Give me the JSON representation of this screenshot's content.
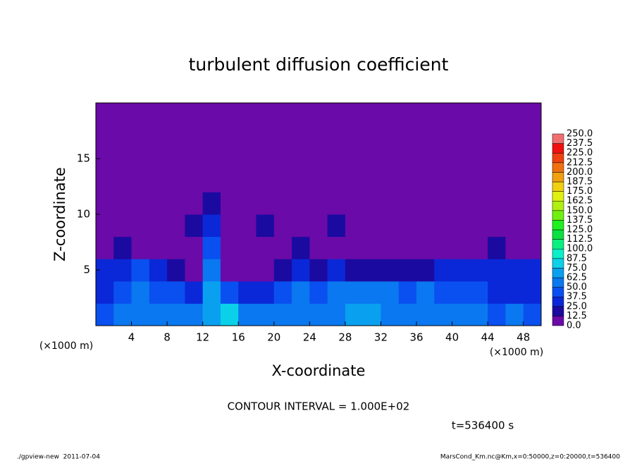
{
  "chart_data": {
    "type": "heatmap",
    "title": "turbulent diffusion coefficient",
    "x_label": "X-coordinate",
    "y_label": "Z-coordinate",
    "x_unit": "(×1000 m)",
    "y_unit": "(×1000 m)",
    "xlim": [
      0,
      50
    ],
    "ylim": [
      0,
      20
    ],
    "xticks": [
      4,
      8,
      12,
      16,
      20,
      24,
      28,
      32,
      36,
      40,
      44,
      48
    ],
    "yticks": [
      5,
      10,
      15
    ],
    "values": [
      [
        45,
        50,
        55,
        60,
        55,
        50,
        65,
        75,
        60,
        55,
        50,
        55,
        60,
        55,
        65,
        70,
        60,
        55,
        60,
        50,
        55,
        50,
        45,
        50,
        45
      ],
      [
        35,
        45,
        55,
        45,
        40,
        35,
        70,
        40,
        30,
        35,
        45,
        50,
        45,
        50,
        55,
        60,
        50,
        45,
        50,
        45,
        40,
        40,
        35,
        35,
        30
      ],
      [
        30,
        35,
        40,
        25,
        15,
        10,
        60,
        10,
        5,
        5,
        15,
        25,
        20,
        25,
        20,
        20,
        15,
        15,
        20,
        25,
        25,
        25,
        25,
        25,
        25
      ],
      [
        5,
        15,
        5,
        5,
        0,
        5,
        40,
        5,
        0,
        0,
        5,
        15,
        5,
        5,
        0,
        5,
        0,
        5,
        0,
        5,
        0,
        10,
        15,
        5,
        5
      ],
      [
        5,
        0,
        5,
        0,
        5,
        15,
        30,
        0,
        5,
        15,
        5,
        5,
        5,
        15,
        5,
        10,
        5,
        0,
        5,
        5,
        5,
        0,
        5,
        5,
        0
      ],
      [
        5,
        5,
        5,
        0,
        0,
        10,
        15,
        0,
        0,
        5,
        0,
        0,
        0,
        5,
        10,
        5,
        10,
        5,
        5,
        5,
        0,
        5,
        0,
        0,
        5
      ],
      [
        5,
        0,
        5,
        0,
        0,
        0,
        0,
        0,
        0,
        0,
        0,
        0,
        0,
        0,
        0,
        0,
        0,
        0,
        0,
        0,
        0,
        0,
        0,
        0,
        5
      ],
      [
        0,
        0,
        0,
        0,
        0,
        0,
        0,
        0,
        0,
        0,
        0,
        0,
        0,
        0,
        0,
        0,
        0,
        0,
        0,
        0,
        0,
        0,
        0,
        0,
        0
      ],
      [
        0,
        0,
        0,
        0,
        0,
        0,
        0,
        0,
        0,
        0,
        0,
        0,
        0,
        0,
        0,
        0,
        0,
        0,
        0,
        0,
        0,
        0,
        0,
        0,
        0
      ],
      [
        0,
        0,
        0,
        0,
        0,
        0,
        0,
        0,
        0,
        0,
        0,
        0,
        0,
        0,
        0,
        0,
        0,
        0,
        0,
        0,
        0,
        0,
        0,
        0,
        0
      ]
    ],
    "levels": [
      {
        "value": 0,
        "label": "0.0"
      },
      {
        "value": 12.5,
        "label": "12.5"
      },
      {
        "value": 25,
        "label": "25.0"
      },
      {
        "value": 37.5,
        "label": "37.5"
      },
      {
        "value": 50,
        "label": "50.0"
      },
      {
        "value": 62.5,
        "label": "62.5"
      },
      {
        "value": 75,
        "label": "75.0"
      },
      {
        "value": 87.5,
        "label": "87.5"
      },
      {
        "value": 100,
        "label": "100.0"
      },
      {
        "value": 112.5,
        "label": "112.5"
      },
      {
        "value": 125,
        "label": "125.0"
      },
      {
        "value": 137.5,
        "label": "137.5"
      },
      {
        "value": 150,
        "label": "150.0"
      },
      {
        "value": 162.5,
        "label": "162.5"
      },
      {
        "value": 175,
        "label": "175.0"
      },
      {
        "value": 187.5,
        "label": "187.5"
      },
      {
        "value": 200,
        "label": "200.0"
      },
      {
        "value": 212.5,
        "label": "212.5"
      },
      {
        "value": 225,
        "label": "225.0"
      },
      {
        "value": 237.5,
        "label": "237.5"
      },
      {
        "value": 250,
        "label": "250.0"
      }
    ],
    "colors": [
      "#6a0aa8",
      "#1a0aa0",
      "#0a28d8",
      "#0a50f0",
      "#0a78f0",
      "#0aa0f0",
      "#0ad0e8",
      "#0af0c8",
      "#0af080",
      "#0ae040",
      "#20f020",
      "#70f010",
      "#b0f010",
      "#e0f010",
      "#f0d010",
      "#f0a010",
      "#f07010",
      "#f04010",
      "#f01010",
      "#f07070"
    ],
    "contour_interval": "CONTOUR INTERVAL = 1.000E+02",
    "time_label": "t=536400 s",
    "footer_left": "./gpview-new  2011-07-04",
    "footer_right": "MarsCond_Km.nc@Km,x=0:50000,z=0:20000,t=536400"
  }
}
